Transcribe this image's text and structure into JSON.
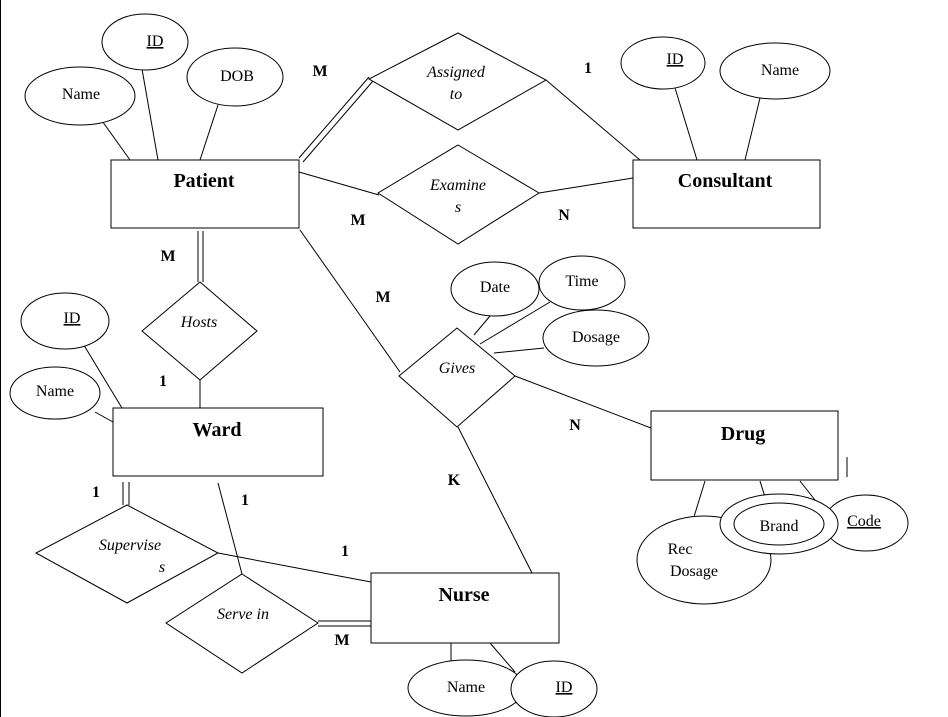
{
  "entities": {
    "patient": "Patient",
    "consultant": "Consultant",
    "ward": "Ward",
    "drug": "Drug",
    "nurse": "Nurse"
  },
  "relationships": {
    "assigned_to": [
      "Assigned",
      "to"
    ],
    "examines": [
      "Examine",
      "s"
    ],
    "hosts": "Hosts",
    "gives": "Gives",
    "supervises": [
      "Supervise",
      "s"
    ],
    "serve_in": "Serve in"
  },
  "attributes": {
    "patient_id": "ID",
    "patient_name": "Name",
    "patient_dob": "DOB",
    "consultant_id": "ID",
    "consultant_name": "Name",
    "ward_id": "ID",
    "ward_name": "Name",
    "gives_date": "Date",
    "gives_time": "Time",
    "gives_dosage": "Dosage",
    "drug_rec_dosage": [
      "Rec",
      "Dosage"
    ],
    "drug_brand": "Brand",
    "drug_code": "Code",
    "nurse_name": "Name",
    "nurse_id": "ID"
  },
  "cardinalities": {
    "assigned_patient": "M",
    "assigned_consultant": "1",
    "examines_patient": "M",
    "examines_consultant": "N",
    "hosts_patient": "M",
    "hosts_ward": "1",
    "gives_patient": "M",
    "gives_drug": "N",
    "gives_nurse": "K",
    "supervises_ward": "1",
    "serve_ward": "1",
    "supervises_nurse": "1",
    "serve_nurse": "M"
  }
}
